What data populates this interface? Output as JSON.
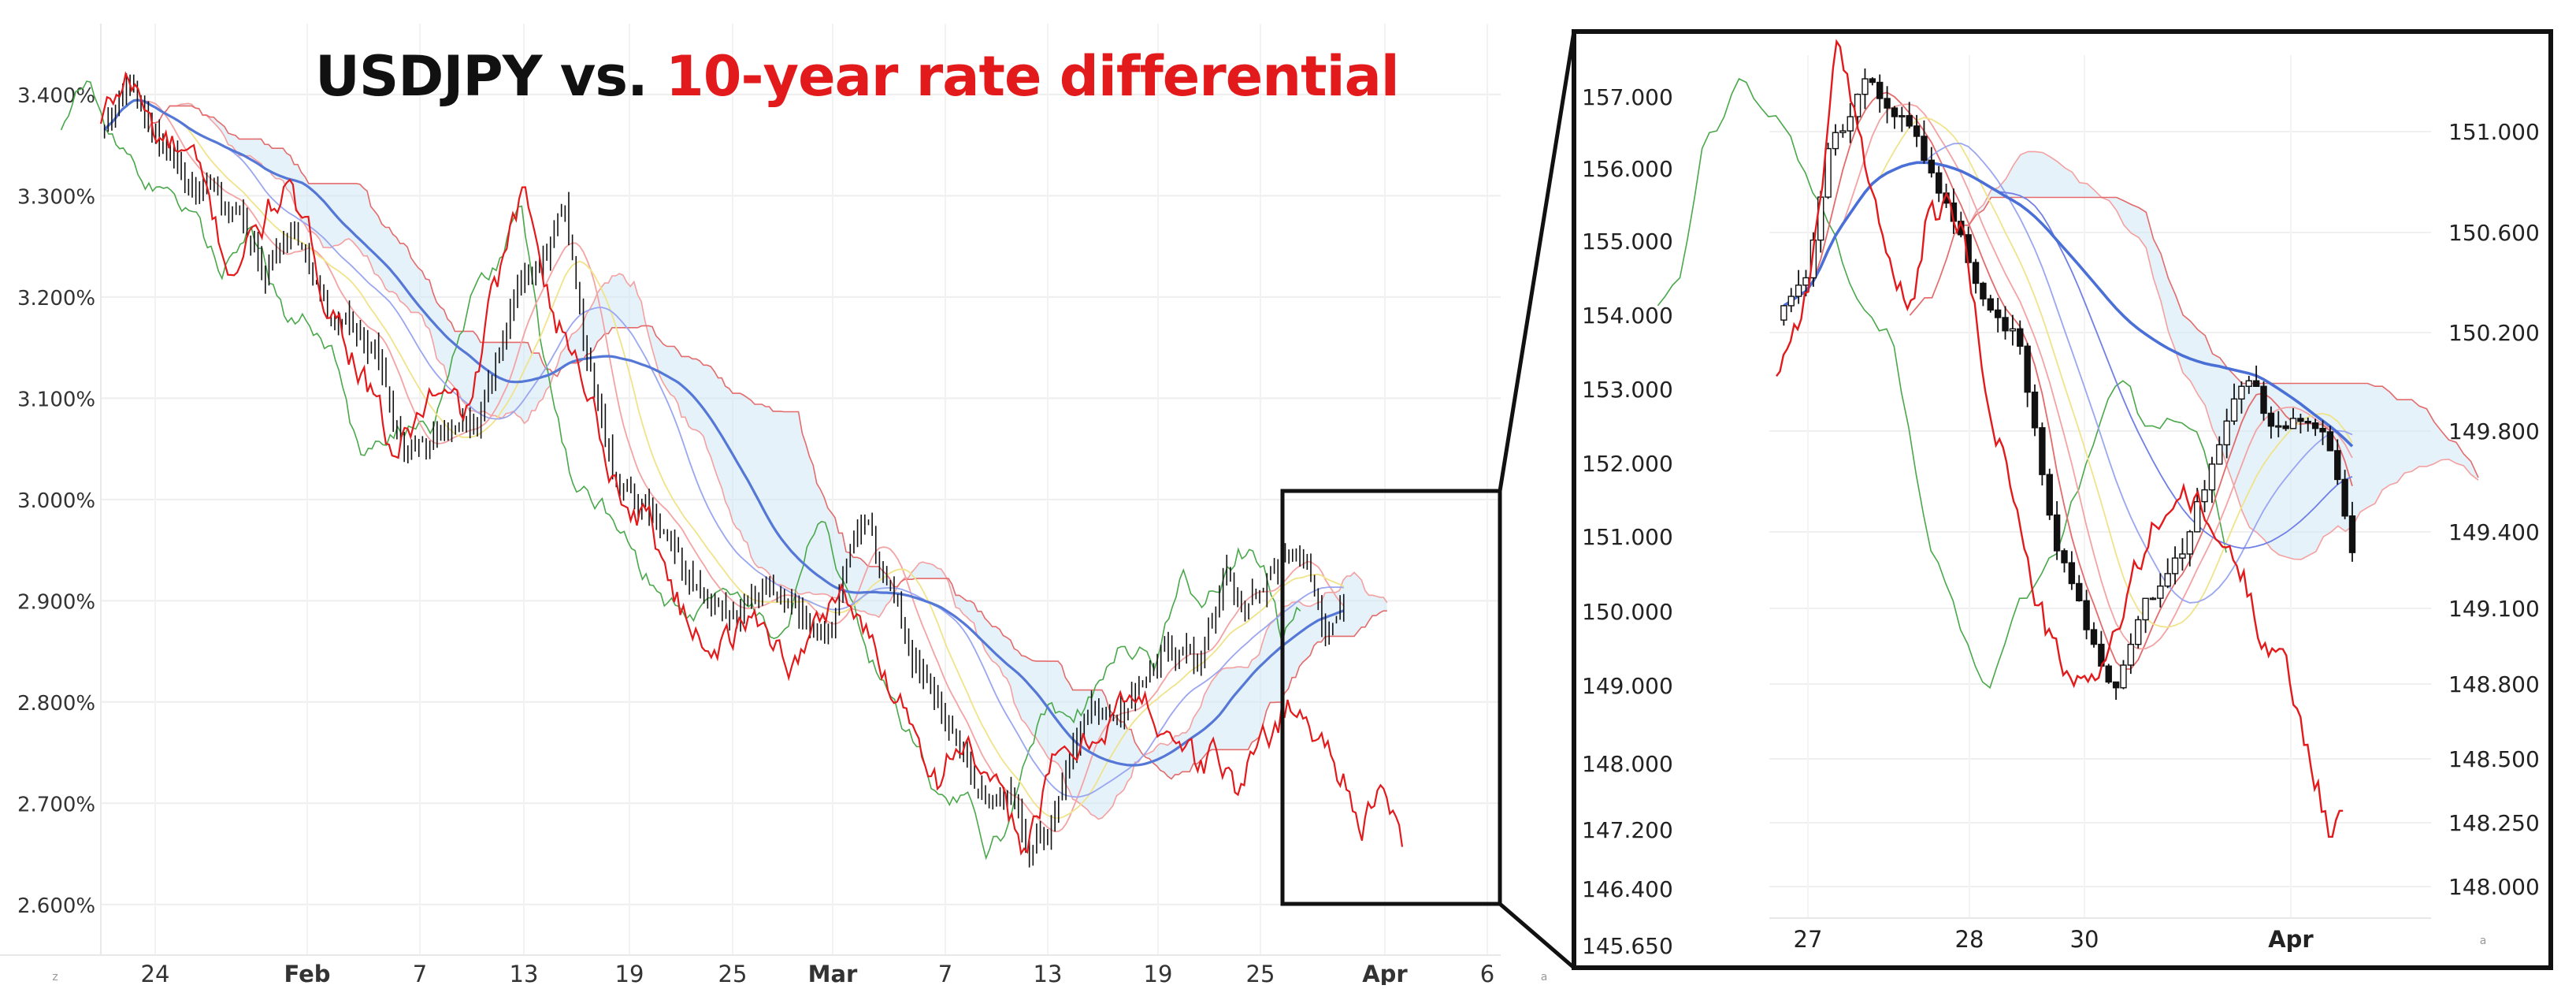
{
  "title": {
    "part1": "USDJPY vs.",
    "part2": "10-year rate differential",
    "part1_color": "#111111",
    "part2_color": "#e31a1c"
  },
  "chart_data": [
    {
      "type": "line",
      "panel": "main",
      "y_axis": {
        "position": "left",
        "labels": [
          "3.400%",
          "3.300%",
          "3.200%",
          "3.100%",
          "3.000%",
          "2.900%",
          "2.800%",
          "2.700%",
          "2.600%"
        ],
        "ylim": [
          2.55,
          3.47
        ]
      },
      "x_axis": {
        "labels": [
          "24",
          "Feb",
          "7",
          "13",
          "19",
          "25",
          "Mar",
          "7",
          "13",
          "19",
          "25",
          "Apr",
          "6"
        ],
        "bold_labels": [
          "Feb",
          "Mar",
          "Apr"
        ],
        "corner_marks": [
          "z",
          "a"
        ]
      },
      "series": [
        {
          "role": "usdjpy-candles",
          "color": "#111111",
          "keypoints": [
            [
              0,
              3.37
            ],
            [
              18,
              3.41
            ],
            [
              45,
              3.33
            ],
            [
              70,
              3.28
            ],
            [
              90,
              3.22
            ],
            [
              105,
              3.28
            ],
            [
              125,
              3.19
            ],
            [
              150,
              3.15
            ],
            [
              165,
              3.04
            ],
            [
              185,
              3.07
            ],
            [
              205,
              3.08
            ],
            [
              228,
              3.2
            ],
            [
              240,
              3.24
            ],
            [
              253,
              3.3
            ],
            [
              265,
              3.13
            ],
            [
              285,
              3.0
            ],
            [
              300,
              2.98
            ],
            [
              320,
              2.92
            ],
            [
              340,
              2.88
            ],
            [
              360,
              2.89
            ],
            [
              385,
              2.86
            ],
            [
              397,
              2.85
            ],
            [
              410,
              2.93
            ],
            [
              420,
              2.96
            ],
            [
              436,
              2.87
            ],
            [
              455,
              2.81
            ],
            [
              480,
              2.72
            ],
            [
              500,
              2.7
            ],
            [
              508,
              2.67
            ],
            [
              520,
              2.69
            ],
            [
              538,
              2.77
            ],
            [
              560,
              2.8
            ],
            [
              580,
              2.85
            ],
            [
              600,
              2.84
            ],
            [
              615,
              2.92
            ],
            [
              628,
              2.9
            ],
            [
              640,
              2.93
            ],
            [
              646,
              2.95
            ],
            [
              660,
              2.94
            ],
            [
              670,
              2.86
            ],
            [
              680,
              2.89
            ]
          ]
        },
        {
          "role": "rate-differential",
          "color": "#e31a1c",
          "keypoints": [
            [
              0,
              3.37
            ],
            [
              15,
              3.42
            ],
            [
              30,
              3.36
            ],
            [
              50,
              3.33
            ],
            [
              70,
              3.23
            ],
            [
              85,
              3.26
            ],
            [
              100,
              3.31
            ],
            [
              120,
              3.22
            ],
            [
              140,
              3.14
            ],
            [
              160,
              3.04
            ],
            [
              180,
              3.1
            ],
            [
              200,
              3.08
            ],
            [
              215,
              3.2
            ],
            [
              230,
              3.29
            ],
            [
              240,
              3.26
            ],
            [
              250,
              3.18
            ],
            [
              265,
              3.12
            ],
            [
              285,
              3.0
            ],
            [
              300,
              2.98
            ],
            [
              320,
              2.88
            ],
            [
              340,
              2.86
            ],
            [
              360,
              2.88
            ],
            [
              380,
              2.84
            ],
            [
              392,
              2.87
            ],
            [
              405,
              2.92
            ],
            [
              415,
              2.88
            ],
            [
              425,
              2.84
            ],
            [
              440,
              2.8
            ],
            [
              458,
              2.73
            ],
            [
              472,
              2.77
            ],
            [
              485,
              2.71
            ],
            [
              505,
              2.66
            ],
            [
              520,
              2.73
            ],
            [
              540,
              2.76
            ],
            [
              555,
              2.8
            ],
            [
              575,
              2.79
            ],
            [
              590,
              2.77
            ],
            [
              600,
              2.73
            ],
            [
              610,
              2.75
            ],
            [
              622,
              2.71
            ],
            [
              635,
              2.76
            ],
            [
              650,
              2.8
            ],
            [
              665,
              2.77
            ],
            [
              680,
              2.73
            ],
            [
              690,
              2.69
            ],
            [
              700,
              2.7
            ],
            [
              712,
              2.66
            ]
          ]
        }
      ],
      "overlays": [
        "ichimoku-cloud",
        "moving-averages"
      ]
    },
    {
      "type": "line",
      "panel": "inset",
      "left_axis": {
        "labels": [
          "157.000",
          "156.000",
          "155.000",
          "154.000",
          "153.000",
          "152.000",
          "151.000",
          "150.000",
          "149.000",
          "148.000",
          "147.200",
          "146.400",
          "145.650"
        ]
      },
      "right_axis": {
        "labels": [
          "151.000",
          "150.600",
          "150.200",
          "149.800",
          "149.400",
          "149.100",
          "148.800",
          "148.500",
          "148.250",
          "148.000"
        ]
      },
      "x_axis": {
        "labels": [
          "27",
          "28",
          "30",
          "Apr"
        ],
        "bold_labels": [
          "Apr"
        ],
        "corner_marks": [
          "a"
        ]
      },
      "series": [
        {
          "role": "usdjpy-candles",
          "color": "#111111",
          "keypoints": [
            [
              0,
              150.25
            ],
            [
              15,
              150.35
            ],
            [
              30,
              150.95
            ],
            [
              50,
              151.2
            ],
            [
              70,
              151.05
            ],
            [
              90,
              150.7
            ],
            [
              110,
              150.3
            ],
            [
              130,
              150.15
            ],
            [
              150,
              149.3
            ],
            [
              170,
              148.9
            ],
            [
              180,
              148.7
            ],
            [
              200,
              149.05
            ],
            [
              220,
              149.3
            ],
            [
              240,
              149.75
            ],
            [
              255,
              150.0
            ],
            [
              265,
              149.8
            ],
            [
              280,
              149.85
            ],
            [
              295,
              149.75
            ],
            [
              310,
              149.3
            ]
          ]
        },
        {
          "role": "rate-differential",
          "color": "#e31a1c",
          "keypoints": [
            [
              0,
              150.05
            ],
            [
              18,
              150.4
            ],
            [
              32,
              151.3
            ],
            [
              48,
              150.9
            ],
            [
              62,
              150.45
            ],
            [
              72,
              150.25
            ],
            [
              80,
              150.6
            ],
            [
              92,
              150.7
            ],
            [
              100,
              150.6
            ],
            [
              112,
              150.0
            ],
            [
              125,
              149.65
            ],
            [
              135,
              149.25
            ],
            [
              148,
              148.95
            ],
            [
              160,
              148.75
            ],
            [
              170,
              148.85
            ],
            [
              180,
              148.95
            ],
            [
              195,
              149.25
            ],
            [
              205,
              149.45
            ],
            [
              215,
              149.55
            ],
            [
              225,
              149.5
            ],
            [
              240,
              149.35
            ],
            [
              250,
              149.25
            ],
            [
              260,
              149.05
            ],
            [
              270,
              148.95
            ],
            [
              278,
              148.75
            ],
            [
              290,
              148.45
            ],
            [
              298,
              148.2
            ],
            [
              305,
              148.25
            ]
          ]
        }
      ],
      "overlays": [
        "ichimoku-cloud",
        "moving-averages"
      ]
    }
  ]
}
